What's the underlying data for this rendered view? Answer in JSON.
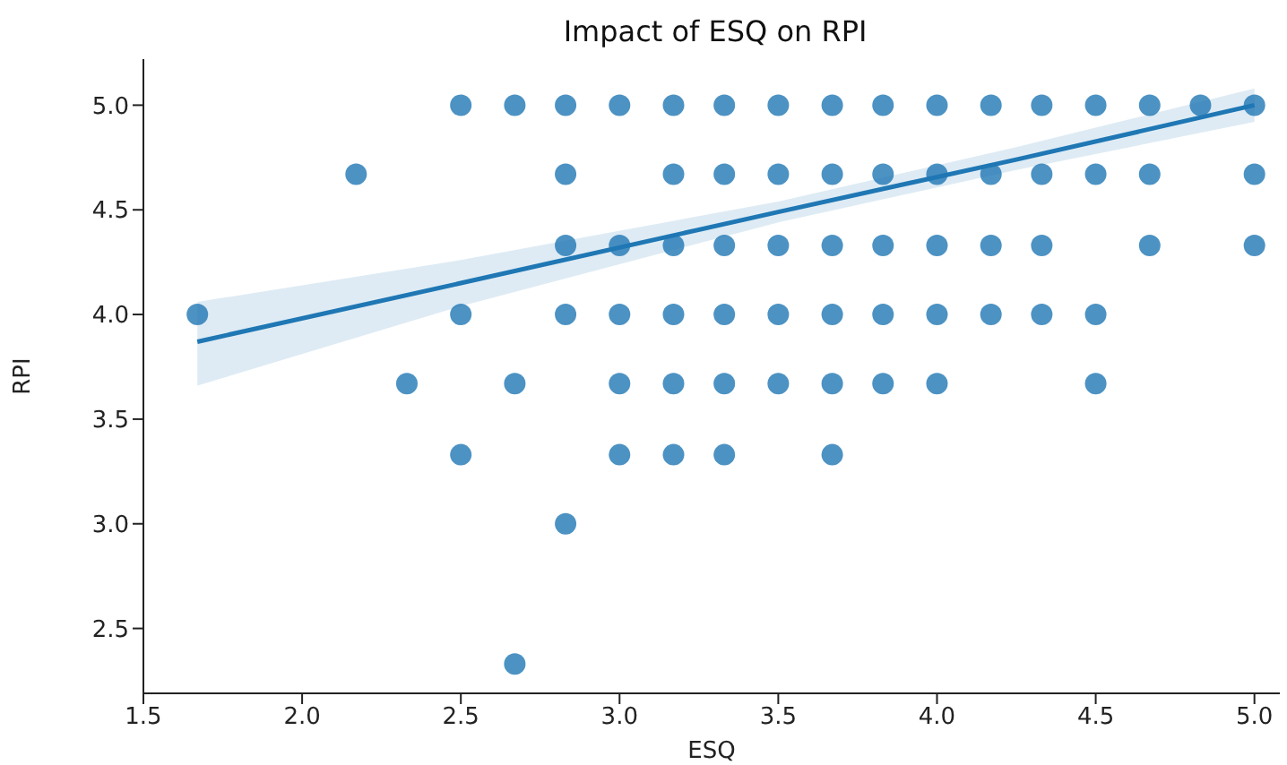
{
  "chart_data": {
    "type": "scatter",
    "title": "Impact of ESQ on RPI",
    "xlabel": "ESQ",
    "ylabel": "RPI",
    "xlim": [
      1.5,
      5.08
    ],
    "xticks": [
      1.5,
      {
        "value": 2,
        "label": "2.0"
      },
      2.5,
      {
        "value": 3,
        "label": "3.0"
      },
      3.5,
      {
        "value": 4,
        "label": "4.0"
      },
      4.5,
      {
        "value": 5,
        "label": "5.0"
      }
    ],
    "ylim": [
      2.19,
      5.22
    ],
    "yticks": [
      2.5,
      {
        "value": 3,
        "label": "3.0"
      },
      3.5,
      {
        "value": 4,
        "label": "4.0"
      },
      4.5,
      {
        "value": 5,
        "label": "5.0"
      }
    ],
    "grid": false,
    "legend": false,
    "series": [
      {
        "marker": "circle",
        "color": "#1f77b4",
        "x": [
          2.5,
          2.67,
          2.83,
          3.0,
          3.17,
          3.33,
          3.5,
          3.67,
          3.83,
          4.0,
          4.17,
          4.33,
          4.5,
          4.67,
          4.83,
          5.0,
          2.17,
          2.83,
          3.17,
          3.33,
          3.5,
          3.67,
          3.83,
          4.0,
          4.17,
          4.33,
          4.5,
          4.67,
          5.0,
          2.83,
          3.0,
          3.17,
          3.33,
          3.5,
          3.67,
          3.83,
          4.0,
          4.17,
          4.33,
          4.67,
          5.0,
          1.67,
          2.5,
          2.83,
          3.0,
          3.17,
          3.33,
          3.5,
          3.67,
          3.83,
          4.0,
          4.17,
          4.33,
          4.5,
          2.33,
          2.67,
          3.0,
          3.17,
          3.33,
          3.5,
          3.67,
          3.83,
          4.0,
          4.5,
          2.5,
          3.0,
          3.17,
          3.33,
          3.67,
          2.83,
          2.67
        ],
        "values": [
          5.0,
          5.0,
          5.0,
          5.0,
          5.0,
          5.0,
          5.0,
          5.0,
          5.0,
          5.0,
          5.0,
          5.0,
          5.0,
          5.0,
          5.0,
          5.0,
          4.67,
          4.67,
          4.67,
          4.67,
          4.67,
          4.67,
          4.67,
          4.67,
          4.67,
          4.67,
          4.67,
          4.67,
          4.67,
          4.33,
          4.33,
          4.33,
          4.33,
          4.33,
          4.33,
          4.33,
          4.33,
          4.33,
          4.33,
          4.33,
          4.33,
          4.0,
          4.0,
          4.0,
          4.0,
          4.0,
          4.0,
          4.0,
          4.0,
          4.0,
          4.0,
          4.0,
          4.0,
          4.0,
          3.67,
          3.67,
          3.67,
          3.67,
          3.67,
          3.67,
          3.67,
          3.67,
          3.67,
          3.67,
          3.33,
          3.33,
          3.33,
          3.33,
          3.33,
          3.0,
          2.33
        ]
      },
      {
        "type": "line",
        "color": "#1f77b4",
        "x": [
          1.67,
          2.5,
          3.5,
          4.25,
          5.0
        ],
        "values": [
          3.87,
          4.15,
          4.49,
          4.74,
          5.0
        ],
        "lower": [
          3.66,
          4.04,
          4.44,
          4.69,
          4.92
        ],
        "upper": [
          4.06,
          4.26,
          4.54,
          4.8,
          5.08
        ]
      }
    ]
  }
}
